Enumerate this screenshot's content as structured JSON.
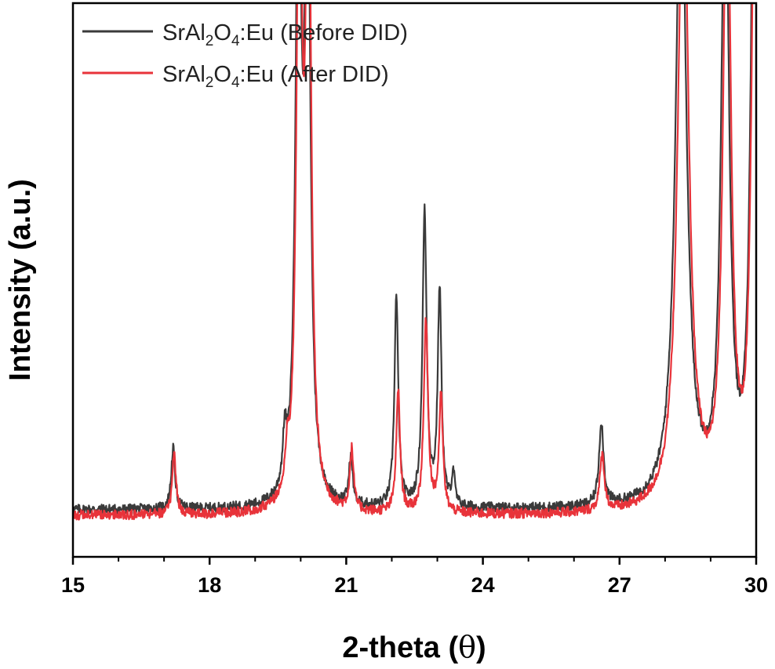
{
  "chart_data": {
    "type": "line",
    "xlabel": "2-theta",
    "xlabel_unit_symbol": "θ",
    "ylabel": "Intensity (a.u.)",
    "xlim": [
      15,
      30
    ],
    "ylim": [
      0,
      100
    ],
    "x_ticks": [
      "15",
      "18",
      "21",
      "24",
      "27",
      "30"
    ],
    "y_ticks_visible": false,
    "legend_position": "top-left",
    "series": [
      {
        "name": "SrAl2O4:Eu (Before DID)",
        "legend": {
          "base": "SrAl",
          "sub1": "2",
          "mid": "O",
          "sub2": "4",
          "tail": ":Eu (Before DID)"
        },
        "color": "#3a3a3a",
        "baseline": 8.5,
        "noise": 0.9,
        "peaks": [
          {
            "x": 17.2,
            "height": 11,
            "width": 0.05
          },
          {
            "x": 19.65,
            "height": 9,
            "width": 0.05
          },
          {
            "x": 19.95,
            "height": 120,
            "width": 0.07
          },
          {
            "x": 20.15,
            "height": 120,
            "width": 0.07
          },
          {
            "x": 21.1,
            "height": 8.5,
            "width": 0.05
          },
          {
            "x": 22.1,
            "height": 38,
            "width": 0.05
          },
          {
            "x": 22.72,
            "height": 53,
            "width": 0.055
          },
          {
            "x": 23.05,
            "height": 39,
            "width": 0.05
          },
          {
            "x": 23.35,
            "height": 6,
            "width": 0.04
          },
          {
            "x": 26.6,
            "height": 15,
            "width": 0.06
          },
          {
            "x": 28.35,
            "height": 120,
            "width": 0.14
          },
          {
            "x": 29.32,
            "height": 120,
            "width": 0.1
          },
          {
            "x": 29.95,
            "height": 120,
            "width": 0.09
          }
        ]
      },
      {
        "name": "SrAl2O4:Eu (After DID)",
        "legend": {
          "base": "SrAl",
          "sub1": "2",
          "mid": "O",
          "sub2": "4",
          "tail": ":Eu (After DID)"
        },
        "color": "#e8333a",
        "baseline": 7.5,
        "noise": 0.9,
        "peaks": [
          {
            "x": 17.22,
            "height": 11,
            "width": 0.05
          },
          {
            "x": 19.7,
            "height": 6,
            "width": 0.05
          },
          {
            "x": 19.97,
            "height": 120,
            "width": 0.07
          },
          {
            "x": 20.17,
            "height": 120,
            "width": 0.07
          },
          {
            "x": 21.12,
            "height": 11,
            "width": 0.05
          },
          {
            "x": 22.14,
            "height": 22,
            "width": 0.05
          },
          {
            "x": 22.75,
            "height": 35,
            "width": 0.055
          },
          {
            "x": 23.08,
            "height": 21,
            "width": 0.05
          },
          {
            "x": 26.62,
            "height": 10,
            "width": 0.06
          },
          {
            "x": 28.4,
            "height": 120,
            "width": 0.14
          },
          {
            "x": 29.36,
            "height": 120,
            "width": 0.1
          },
          {
            "x": 29.97,
            "height": 120,
            "width": 0.09
          }
        ]
      }
    ]
  }
}
